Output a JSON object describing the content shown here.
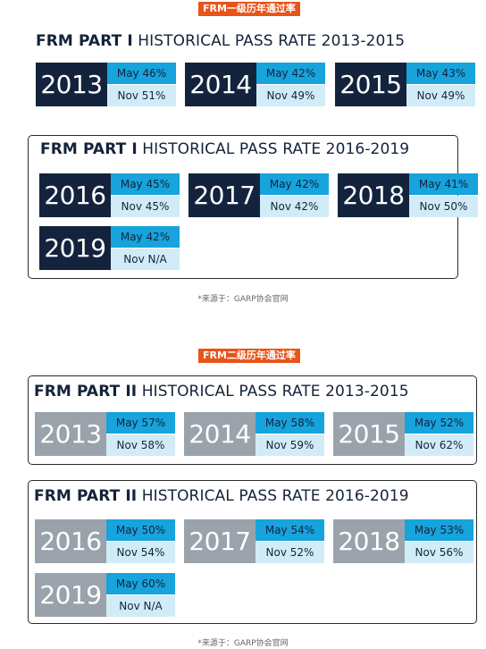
{
  "part1": {
    "tag": "FRM一级历年通过率",
    "section_a": {
      "title_bold": "FRM PART I",
      "title_rest": " HISTORICAL PASS RATE 2013-2015",
      "cards": [
        {
          "year": "2013",
          "may": "May 46%",
          "nov": "Nov 51%"
        },
        {
          "year": "2014",
          "may": "May 42%",
          "nov": "Nov 49%"
        },
        {
          "year": "2015",
          "may": "May 43%",
          "nov": "Nov 49%"
        }
      ]
    },
    "section_b": {
      "title_bold": "FRM PART I",
      "title_rest": " HISTORICAL PASS RATE 2016-2019",
      "cards": [
        {
          "year": "2016",
          "may": "May 45%",
          "nov": "Nov 45%"
        },
        {
          "year": "2017",
          "may": "May 42%",
          "nov": "Nov 42%"
        },
        {
          "year": "2018",
          "may": "May 41%",
          "nov": "Nov 50%"
        },
        {
          "year": "2019",
          "may": "May 42%",
          "nov": "Nov N/A"
        }
      ]
    },
    "source": "*来源于：GARP协会官网"
  },
  "part2": {
    "tag": "FRM二级历年通过率",
    "section_a": {
      "title_bold": "FRM PART II",
      "title_rest": " HISTORICAL PASS RATE 2013-2015",
      "cards": [
        {
          "year": "2013",
          "may": "May 57%",
          "nov": "Nov 58%"
        },
        {
          "year": "2014",
          "may": "May 58%",
          "nov": "Nov 59%"
        },
        {
          "year": "2015",
          "may": "May 52%",
          "nov": "Nov 62%"
        }
      ]
    },
    "section_b": {
      "title_bold": "FRM PART II",
      "title_rest": " HISTORICAL PASS RATE 2016-2019",
      "cards": [
        {
          "year": "2016",
          "may": "May 50%",
          "nov": "Nov 54%"
        },
        {
          "year": "2017",
          "may": "May 54%",
          "nov": "Nov 52%"
        },
        {
          "year": "2018",
          "may": "May 53%",
          "nov": "Nov 56%"
        },
        {
          "year": "2019",
          "may": "May 60%",
          "nov": "Nov N/A"
        }
      ]
    },
    "source": "*来源于：GARP协会官网"
  },
  "colors": {
    "tag_bg": "#e8541a",
    "year_dark": "#13233d",
    "year_gray": "#9aa3ab",
    "may_bg": "#17a3dc",
    "nov_bg": "#d2ecf7"
  }
}
